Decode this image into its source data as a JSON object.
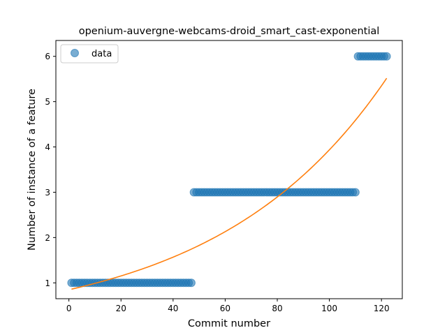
{
  "chart_data": {
    "type": "scatter",
    "title": "openium-auvergne-webcams-droid_smart_cast-exponential",
    "xlabel": "Commit number",
    "ylabel": "Number of instance of a feature",
    "xlim": [
      -5,
      128
    ],
    "ylim": [
      0.65,
      6.35
    ],
    "xticks": [
      0,
      20,
      40,
      60,
      80,
      100,
      120
    ],
    "yticks": [
      1,
      2,
      3,
      4,
      5,
      6
    ],
    "grid": false,
    "legend": {
      "position": "top-left",
      "entries": [
        "data"
      ]
    },
    "series": [
      {
        "name": "data",
        "kind": "scatter",
        "color": "#1f77b4",
        "segments": [
          {
            "x_start": 1,
            "x_end": 47,
            "y": 1
          },
          {
            "x_start": 48,
            "x_end": 110,
            "y": 3
          },
          {
            "x_start": 111,
            "x_end": 122,
            "y": 6
          }
        ]
      },
      {
        "kind": "line",
        "color": "#ff7f0e",
        "fit": {
          "model": "exponential",
          "a": 0.848,
          "b": 0.01535
        },
        "x_range": [
          1,
          122
        ]
      }
    ]
  }
}
